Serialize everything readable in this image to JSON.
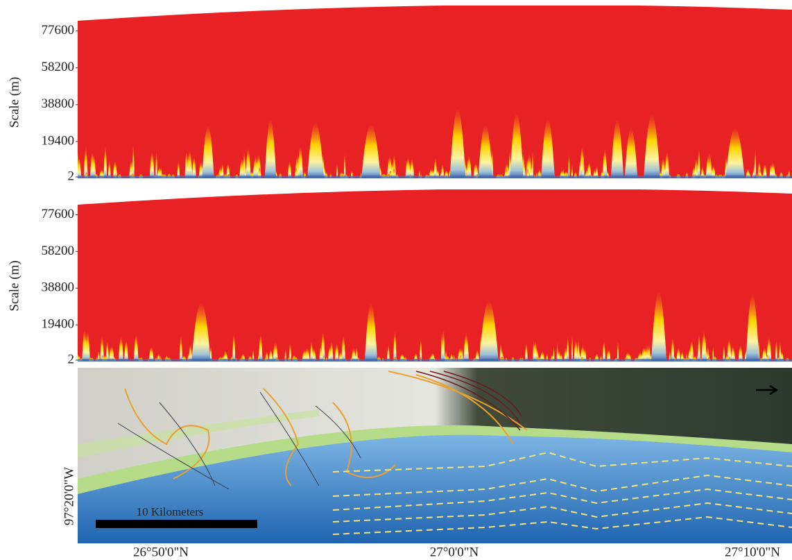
{
  "chart_data": [
    {
      "type": "heatmap",
      "ylabel": "Scale (m)",
      "ylim": [
        2,
        91000
      ],
      "yticks": [
        2,
        19400,
        38800,
        58200,
        77600
      ]
    },
    {
      "type": "heatmap",
      "ylabel": "Scale (m)",
      "ylim": [
        2,
        91000
      ],
      "yticks": [
        2,
        19400,
        38800,
        58200,
        77600
      ]
    }
  ],
  "map": {
    "scale_bar": "10 Kilometers",
    "y_label": "97°20'0\"W",
    "x_labels": [
      "26°50'0\"N",
      "27°0'0\"N",
      "27°10'0\"N"
    ]
  }
}
